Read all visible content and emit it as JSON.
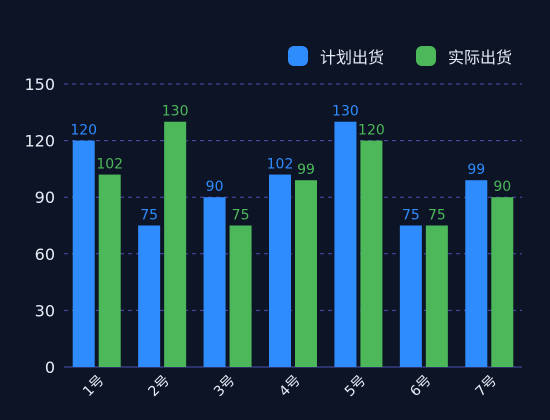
{
  "chart_data": {
    "type": "bar",
    "categories": [
      "1号",
      "2号",
      "3号",
      "4号",
      "5号",
      "6号",
      "7号"
    ],
    "series": [
      {
        "name": "计划出货",
        "color": "#2f8cff",
        "values": [
          120,
          75,
          90,
          102,
          130,
          75,
          99
        ]
      },
      {
        "name": "实际出货",
        "color": "#4cb85a",
        "values": [
          102,
          130,
          75,
          99,
          120,
          75,
          90
        ]
      }
    ],
    "yticks": [
      0,
      30,
      60,
      90,
      120,
      150
    ],
    "ylim": [
      0,
      150
    ],
    "grid": true,
    "legend_position": "top-right",
    "data_labels": true,
    "x_tick_rotation": -45
  }
}
